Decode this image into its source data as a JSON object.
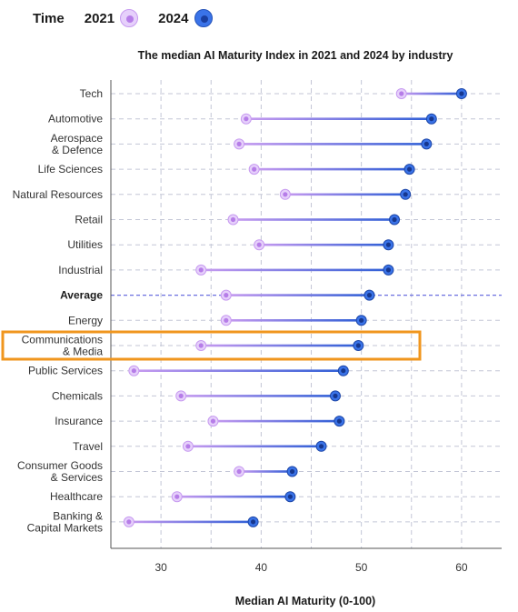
{
  "legend": {
    "title": "Time",
    "items": [
      {
        "label": "2021",
        "color": "#c79af0"
      },
      {
        "label": "2024",
        "color": "#3a73e8"
      }
    ]
  },
  "chart_data": {
    "type": "dumbbell",
    "title": "The median AI Maturity Index in 2021 and 2024 by industry",
    "xlabel": "Median AI Maturity (0-100)",
    "ylabel": "",
    "xlim": [
      25,
      64
    ],
    "xticks": [
      30,
      40,
      50,
      60
    ],
    "grid": true,
    "legend_position": "top-left",
    "highlighted_category": "Communications & Media",
    "highlight_color": "#f0961e",
    "series": [
      {
        "name": "2021",
        "color": "#c79af0"
      },
      {
        "name": "2024",
        "color": "#3a73e8"
      }
    ],
    "rows": [
      {
        "category": "Tech",
        "lines": [
          "Tech"
        ],
        "v2021": 54,
        "v2024": 60
      },
      {
        "category": "Automotive",
        "lines": [
          "Automotive"
        ],
        "v2021": 38.5,
        "v2024": 57
      },
      {
        "category": "Aerospace & Defence",
        "lines": [
          "Aerospace",
          "& Defence"
        ],
        "v2021": 37.8,
        "v2024": 56.5
      },
      {
        "category": "Life Sciences",
        "lines": [
          "Life Sciences"
        ],
        "v2021": 39.3,
        "v2024": 54.8
      },
      {
        "category": "Natural Resources",
        "lines": [
          "Natural Resources"
        ],
        "v2021": 42.4,
        "v2024": 54.4
      },
      {
        "category": "Retail",
        "lines": [
          "Retail"
        ],
        "v2021": 37.2,
        "v2024": 53.3
      },
      {
        "category": "Utilities",
        "lines": [
          "Utilities"
        ],
        "v2021": 39.8,
        "v2024": 52.7
      },
      {
        "category": "Industrial",
        "lines": [
          "Industrial"
        ],
        "v2021": 34,
        "v2024": 52.7
      },
      {
        "category": "Average",
        "lines": [
          "Average"
        ],
        "v2021": 36.5,
        "v2024": 50.8,
        "average": true
      },
      {
        "category": "Energy",
        "lines": [
          "Energy"
        ],
        "v2021": 36.5,
        "v2024": 50
      },
      {
        "category": "Communications & Media",
        "lines": [
          "Communications",
          "& Media"
        ],
        "v2021": 34,
        "v2024": 49.7
      },
      {
        "category": "Public Services",
        "lines": [
          "Public Services"
        ],
        "v2021": 27.3,
        "v2024": 48.2
      },
      {
        "category": "Chemicals",
        "lines": [
          "Chemicals"
        ],
        "v2021": 32,
        "v2024": 47.4
      },
      {
        "category": "Insurance",
        "lines": [
          "Insurance"
        ],
        "v2021": 35.2,
        "v2024": 47.8
      },
      {
        "category": "Travel",
        "lines": [
          "Travel"
        ],
        "v2021": 32.7,
        "v2024": 46
      },
      {
        "category": "Consumer Goods & Services",
        "lines": [
          "Consumer Goods",
          "& Services"
        ],
        "v2021": 37.8,
        "v2024": 43.1
      },
      {
        "category": "Healthcare",
        "lines": [
          "Healthcare"
        ],
        "v2021": 31.6,
        "v2024": 42.9
      },
      {
        "category": "Banking & Capital Markets",
        "lines": [
          "Banking &",
          "Capital Markets"
        ],
        "v2021": 26.8,
        "v2024": 39.2
      }
    ]
  }
}
